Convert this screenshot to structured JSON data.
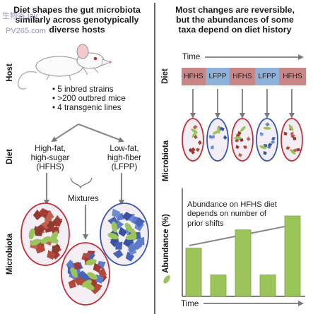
{
  "watermark": {
    "line1": "生物谷.ioy",
    "line2": "PV265.com"
  },
  "left": {
    "title_lines": [
      "Diet shapes the gut microbiota",
      "similarly across genotypically",
      "diverse hosts"
    ],
    "side_labels": {
      "host": "Host",
      "diet": "Diet",
      "microbiota": "Microbiota"
    },
    "host_bullets": [
      "5 inbred strains",
      ">200 outbred mice",
      "4 transgenic lines"
    ],
    "bullet_char": "•",
    "diet_hfhs": [
      "High-fat,",
      "high-sugar",
      "(HFHS)"
    ],
    "diet_lfpp": [
      "Low-fat,",
      "high-fiber",
      "(LFPP)"
    ],
    "mixtures_label": "Mixtures"
  },
  "right": {
    "title_lines": [
      "Most changes are reversible,",
      "but the abundances of some",
      "taxa depend on diet history"
    ],
    "side_labels": {
      "diet": "Diet",
      "microbiota": "Microbiota",
      "abundance": "Abundance (%)"
    },
    "time_label": "Time",
    "diet_sequence": [
      "HFHS",
      "LFPP",
      "HFHS",
      "LFPP",
      "HFHS"
    ],
    "colors": {
      "hfhs": "#c98686",
      "lfpp": "#8fb0d8",
      "bar": "#9bc45a",
      "oval_red": "#c0303c",
      "oval_blue": "#3a55b0"
    },
    "chart_note_lines": [
      "Abundance on HFHS diet",
      "depends on number of",
      "prior shifts"
    ],
    "bottom_time_label": "Time"
  },
  "chart_data": {
    "type": "bar",
    "title": "",
    "xlabel": "Time",
    "ylabel": "Abundance (%)",
    "categories": [
      "HFHS",
      "LFPP",
      "HFHS",
      "LFPP",
      "HFHS"
    ],
    "values": [
      45,
      20,
      62,
      20,
      75
    ],
    "ylim": [
      0,
      100
    ],
    "grid": false,
    "trend": "increasing"
  }
}
